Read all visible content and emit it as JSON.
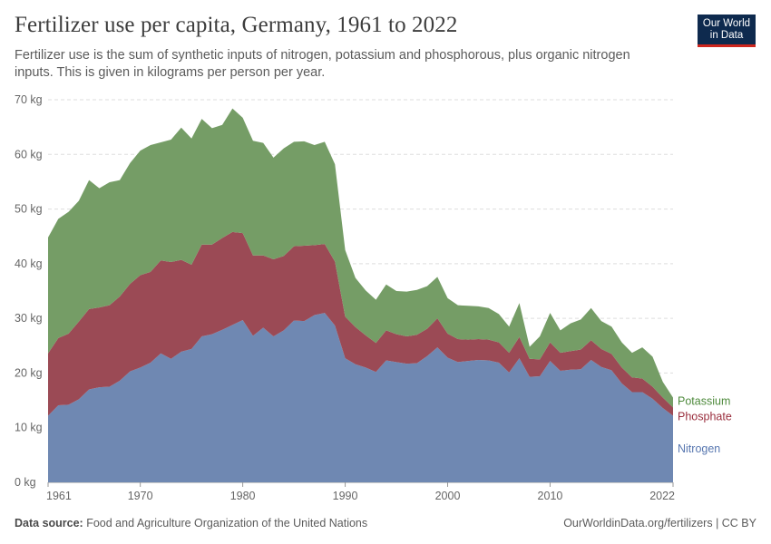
{
  "header": {
    "title": "Fertilizer use per capita, Germany, 1961 to 2022",
    "subtitle": "Fertilizer use is the sum of synthetic inputs of nitrogen, potassium and phosphorous, plus organic nitrogen inputs. This is given in kilograms per person per year."
  },
  "logo": {
    "line1": "Our World",
    "line2": "in Data"
  },
  "footer": {
    "source_label": "Data source:",
    "source_text": "Food and Agriculture Organization of the United Nations",
    "credit": "OurWorldinData.org/fertilizers | CC BY"
  },
  "colors": {
    "nitrogen": "#6f88b2",
    "phosphate": "#9b4a55",
    "potassium": "#759d66",
    "label_nitrogen": "#5877b0",
    "label_phosphate": "#9a2e3d",
    "label_potassium": "#4e8a3c",
    "grid": "#dddddd"
  },
  "chart_data": {
    "type": "area",
    "stacked": true,
    "title": "Fertilizer use per capita, Germany, 1961 to 2022",
    "xlabel": "",
    "ylabel": "",
    "xlim": [
      1961,
      2022
    ],
    "ylim": [
      0,
      70
    ],
    "y_ticks": [
      0,
      10,
      20,
      30,
      40,
      50,
      60,
      70
    ],
    "y_tick_labels": [
      "0 kg",
      "10 kg",
      "20 kg",
      "30 kg",
      "40 kg",
      "50 kg",
      "60 kg",
      "70 kg"
    ],
    "x_ticks": [
      1961,
      1970,
      1980,
      1990,
      2000,
      2010,
      2022
    ],
    "x_tick_labels": [
      "1961",
      "1970",
      "1980",
      "1990",
      "2000",
      "2010",
      "2022"
    ],
    "grid": "horizontal dashed",
    "years": [
      1961,
      1962,
      1963,
      1964,
      1965,
      1966,
      1967,
      1968,
      1969,
      1970,
      1971,
      1972,
      1973,
      1974,
      1975,
      1976,
      1977,
      1978,
      1979,
      1980,
      1981,
      1982,
      1983,
      1984,
      1985,
      1986,
      1987,
      1988,
      1989,
      1990,
      1991,
      1992,
      1993,
      1994,
      1995,
      1996,
      1997,
      1998,
      1999,
      2000,
      2001,
      2002,
      2003,
      2004,
      2005,
      2006,
      2007,
      2008,
      2009,
      2010,
      2011,
      2012,
      2013,
      2014,
      2015,
      2016,
      2017,
      2018,
      2019,
      2020,
      2021,
      2022
    ],
    "series": [
      {
        "name": "Nitrogen",
        "values": [
          12.2,
          14.1,
          14.2,
          15.2,
          17.0,
          17.4,
          17.5,
          18.6,
          20.3,
          21.0,
          21.9,
          23.6,
          22.6,
          23.9,
          24.4,
          26.7,
          27.1,
          27.9,
          28.8,
          29.7,
          26.8,
          28.3,
          26.7,
          27.8,
          29.6,
          29.5,
          30.6,
          31.0,
          28.7,
          22.7,
          21.6,
          21.0,
          20.2,
          22.3,
          22.0,
          21.7,
          21.8,
          23.1,
          24.7,
          22.8,
          22.0,
          22.2,
          22.4,
          22.3,
          21.9,
          20.1,
          22.7,
          19.3,
          19.4,
          22.2,
          20.4,
          20.6,
          20.7,
          22.4,
          21.1,
          20.5,
          18.1,
          16.5,
          16.5,
          15.3,
          13.6,
          12.2
        ]
      },
      {
        "name": "Phosphate",
        "values": [
          11.4,
          12.3,
          13.0,
          14.2,
          14.7,
          14.6,
          14.9,
          15.4,
          16.0,
          16.9,
          16.6,
          17.0,
          17.7,
          16.8,
          15.4,
          16.8,
          16.4,
          16.8,
          17.0,
          15.9,
          14.7,
          13.2,
          14.1,
          13.6,
          13.6,
          13.8,
          12.8,
          12.6,
          11.7,
          7.6,
          6.8,
          5.9,
          5.3,
          5.5,
          5.1,
          5.0,
          5.2,
          5.0,
          5.3,
          4.4,
          4.2,
          3.9,
          3.8,
          3.8,
          3.7,
          3.6,
          3.9,
          3.3,
          3.1,
          3.4,
          3.3,
          3.4,
          3.6,
          3.6,
          3.3,
          3.0,
          2.9,
          2.7,
          2.5,
          2.2,
          1.9,
          1.5
        ]
      },
      {
        "name": "Potassium",
        "values": [
          21.2,
          21.8,
          22.3,
          22.1,
          23.6,
          21.8,
          22.5,
          21.3,
          22.1,
          22.8,
          23.2,
          21.6,
          22.4,
          24.2,
          23.1,
          23.0,
          21.3,
          20.7,
          22.6,
          21.1,
          21.0,
          20.6,
          18.6,
          19.7,
          19.1,
          19.1,
          18.3,
          18.7,
          17.8,
          12.2,
          9.0,
          8.2,
          7.9,
          8.4,
          7.9,
          8.2,
          8.2,
          7.8,
          7.6,
          6.5,
          6.2,
          6.2,
          6.0,
          5.8,
          5.2,
          4.8,
          6.2,
          2.2,
          4.2,
          5.4,
          4.1,
          5.1,
          5.5,
          5.9,
          5.1,
          5.0,
          4.6,
          4.5,
          5.7,
          5.5,
          2.9,
          1.8
        ]
      }
    ],
    "end_labels": [
      "Potassium",
      "Phosphate",
      "Nitrogen"
    ]
  }
}
